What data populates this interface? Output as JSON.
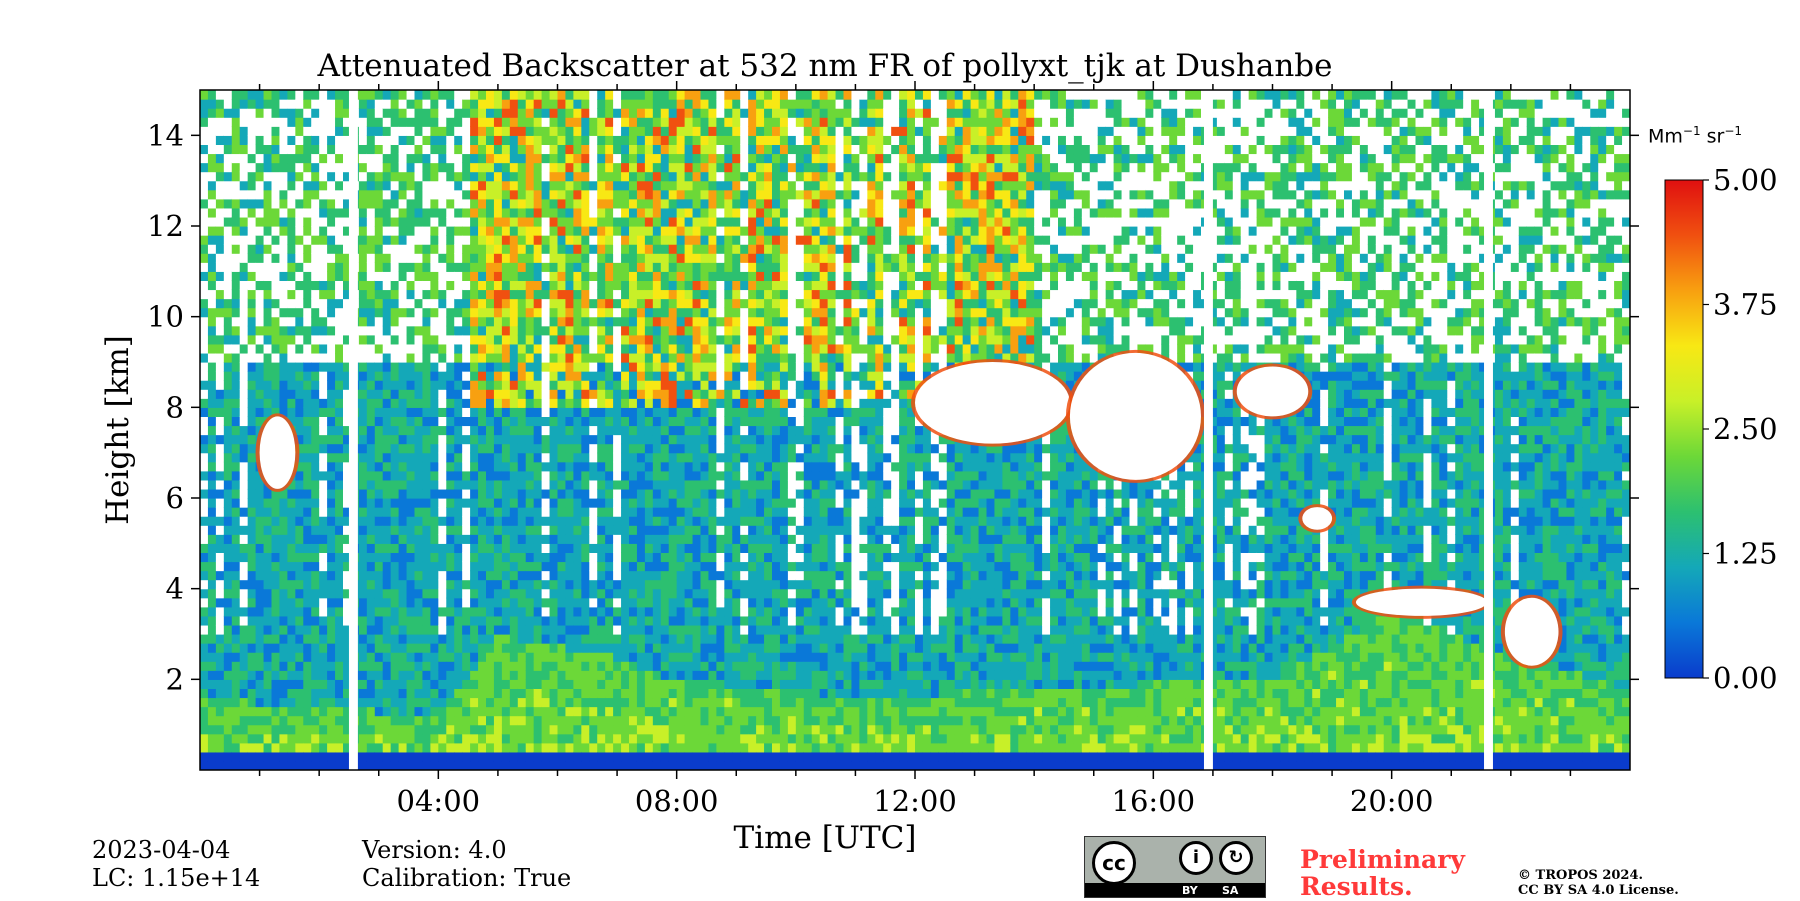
{
  "chart_data": {
    "type": "heatmap",
    "title": "Attenuated Backscatter at 532 nm FR of pollyxt_tjk at Dushanbe",
    "xlabel": "Time [UTC]",
    "ylabel": "Height [km]",
    "xlim_hours": [
      0,
      24
    ],
    "ylim_km": [
      0,
      15
    ],
    "x_ticks": [
      {
        "value": 4,
        "label": "04:00"
      },
      {
        "value": 8,
        "label": "08:00"
      },
      {
        "value": 12,
        "label": "12:00"
      },
      {
        "value": 16,
        "label": "16:00"
      },
      {
        "value": 20,
        "label": "20:00"
      }
    ],
    "y_ticks": [
      {
        "value": 2,
        "label": "2"
      },
      {
        "value": 4,
        "label": "4"
      },
      {
        "value": 6,
        "label": "6"
      },
      {
        "value": 8,
        "label": "8"
      },
      {
        "value": 10,
        "label": "10"
      },
      {
        "value": 12,
        "label": "12"
      },
      {
        "value": 14,
        "label": "14"
      }
    ],
    "colorbar": {
      "range": [
        0,
        5
      ],
      "ticks": [
        "0.00",
        "1.25",
        "2.50",
        "3.75",
        "5.00"
      ],
      "unit_base": "Mm",
      "unit_exp1": "−1",
      "unit_mid": " sr",
      "unit_exp2": "−1",
      "colormap": [
        "#0a3ccc",
        "#0a78d8",
        "#14a8b8",
        "#2cc070",
        "#6cd838",
        "#c8f028",
        "#f8e814",
        "#f8a010",
        "#f05010",
        "#e01010"
      ]
    },
    "data_gaps_hours": [
      [
        2.5,
        2.65
      ],
      [
        16.85,
        17.0
      ],
      [
        21.55,
        21.7
      ]
    ],
    "layers": {
      "boundary_layer_top_km": [
        {
          "t": 0,
          "h": 1.6
        },
        {
          "t": 2,
          "h": 1.4
        },
        {
          "t": 4,
          "h": 1.2
        },
        {
          "t": 5,
          "h": 3.0
        },
        {
          "t": 7,
          "h": 2.5
        },
        {
          "t": 8,
          "h": 2.0
        },
        {
          "t": 11,
          "h": 1.6
        },
        {
          "t": 14,
          "h": 1.8
        },
        {
          "t": 18,
          "h": 2.0
        },
        {
          "t": 20,
          "h": 3.5
        },
        {
          "t": 22,
          "h": 2.5
        },
        {
          "t": 24,
          "h": 1.8
        }
      ],
      "clouds": [
        {
          "t0": 12.0,
          "t1": 14.6,
          "h0": 7.2,
          "h1": 9.0
        },
        {
          "t0": 14.6,
          "t1": 16.8,
          "h0": 6.4,
          "h1": 9.2
        },
        {
          "t0": 17.4,
          "t1": 18.6,
          "h0": 7.8,
          "h1": 8.9
        },
        {
          "t0": 18.5,
          "t1": 19.0,
          "h0": 5.3,
          "h1": 5.8
        },
        {
          "t0": 19.4,
          "t1": 21.6,
          "h0": 3.4,
          "h1": 4.0
        },
        {
          "t0": 21.9,
          "t1": 22.8,
          "h0": 2.3,
          "h1": 3.8
        },
        {
          "t0": 1.0,
          "t1": 1.6,
          "h0": 6.2,
          "h1": 7.8
        }
      ]
    }
  },
  "info": {
    "date": "2023-04-04",
    "lc": "LC: 1.15e+14",
    "version": "Version: 4.0",
    "calibration": "Calibration: True",
    "preliminary": "Preliminary Results.",
    "copyright_line1": "© TROPOS 2024.",
    "copyright_line2": "CC BY SA 4.0 License."
  },
  "license_badge": {
    "cc_symbol": "cc",
    "by_label": "BY",
    "sa_label": "SA"
  }
}
